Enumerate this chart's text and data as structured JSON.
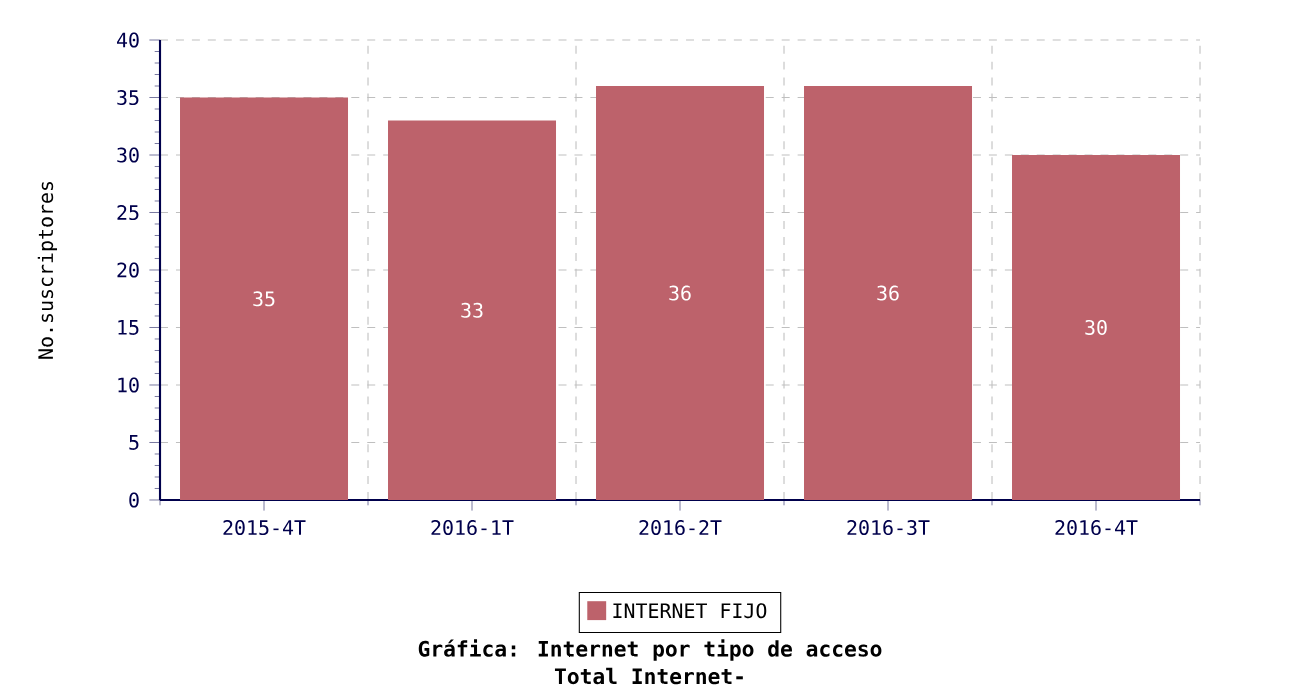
{
  "chart_data": {
    "type": "bar",
    "title": "Gráfica: Internet por tipo de acceso",
    "subtitle": "Total Internet-",
    "ylabel": "No.suscriptores",
    "categories": [
      "2015-4T",
      "2016-1T",
      "2016-2T",
      "2016-3T",
      "2016-4T"
    ],
    "series": [
      {
        "name": "INTERNET FIJO",
        "color": "#bd626b",
        "values": [
          35,
          33,
          36,
          36,
          30
        ]
      }
    ],
    "ylim": [
      0,
      40
    ],
    "yticks": [
      0,
      5,
      10,
      15,
      20,
      25,
      30,
      35,
      40
    ],
    "grid": true,
    "data_labels": true,
    "legend": "bottom"
  }
}
